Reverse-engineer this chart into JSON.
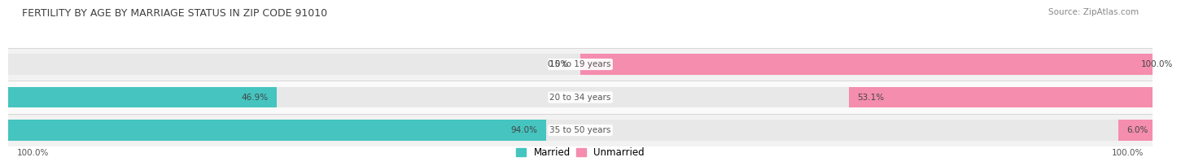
{
  "title": "FERTILITY BY AGE BY MARRIAGE STATUS IN ZIP CODE 91010",
  "source": "Source: ZipAtlas.com",
  "categories": [
    "15 to 19 years",
    "20 to 34 years",
    "35 to 50 years"
  ],
  "married_pct": [
    0.0,
    46.9,
    94.0
  ],
  "unmarried_pct": [
    100.0,
    53.1,
    6.0
  ],
  "married_color": "#45C4C0",
  "unmarried_color": "#F48DAE",
  "bar_bg_color": "#E8E8E8",
  "row_colors": [
    "#F2F2F2",
    "#FAFAFA",
    "#F2F2F2"
  ],
  "bar_height": 0.62,
  "title_fontsize": 9.0,
  "source_fontsize": 7.5,
  "label_fontsize": 7.5,
  "cat_fontsize": 7.5,
  "legend_fontsize": 8.5,
  "background_color": "#FFFFFF"
}
